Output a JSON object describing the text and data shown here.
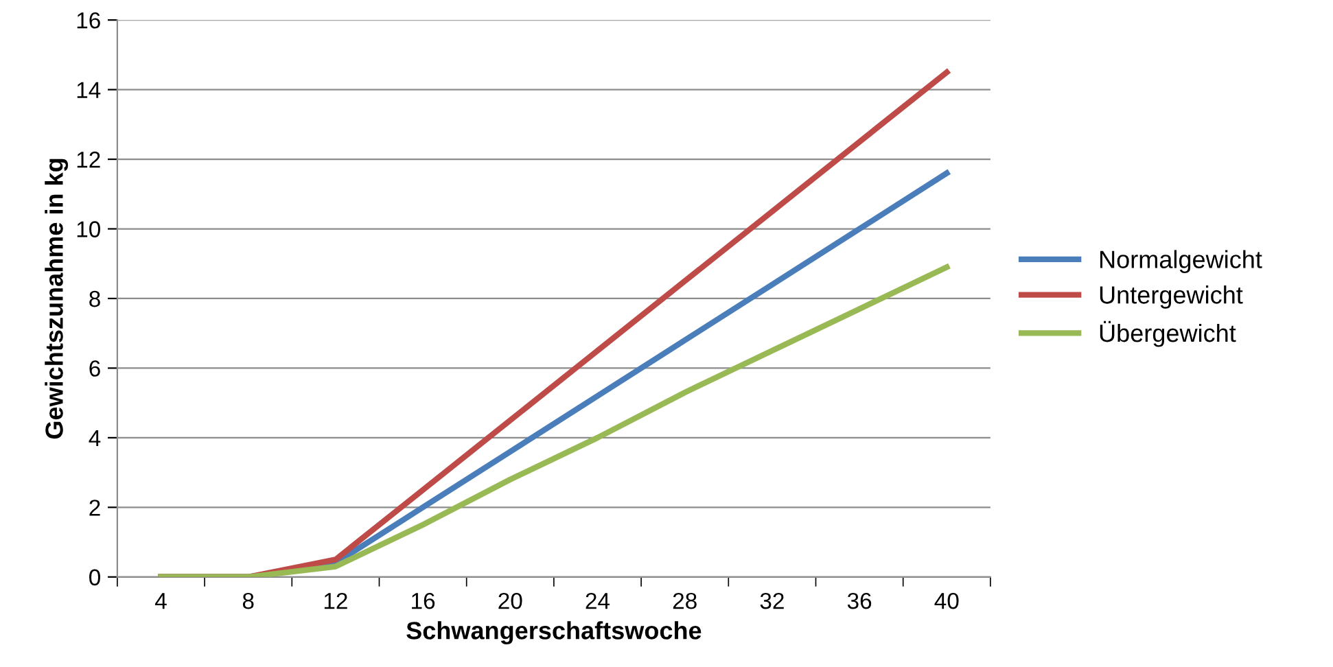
{
  "chart_data": {
    "type": "line",
    "xlabel": "Schwangerschaftswoche",
    "ylabel": "Gewichtszunahme in kg",
    "categories": [
      "4",
      "8",
      "12",
      "16",
      "20",
      "24",
      "28",
      "32",
      "36",
      "40"
    ],
    "series": [
      {
        "name": "Normalgewicht",
        "color": "#4a7ebb",
        "values": [
          0,
          0,
          0.4,
          2.0,
          3.6,
          5.2,
          6.8,
          8.4,
          10.0,
          11.6
        ]
      },
      {
        "name": "Untergewicht",
        "color": "#be4b48",
        "values": [
          0,
          0,
          0.5,
          2.5,
          4.5,
          6.5,
          8.5,
          10.5,
          12.5,
          14.5
        ]
      },
      {
        "name": "Übergewicht",
        "color": "#98b954",
        "values": [
          0,
          0,
          0.3,
          1.5,
          2.8,
          4.0,
          5.3,
          6.5,
          7.7,
          8.9
        ]
      }
    ],
    "ylim": [
      0,
      16
    ],
    "yticks": [
      0,
      2,
      4,
      6,
      8,
      10,
      12,
      14,
      16
    ],
    "grid": "y",
    "legend": "right",
    "marker": "none",
    "line_style": "solid"
  }
}
